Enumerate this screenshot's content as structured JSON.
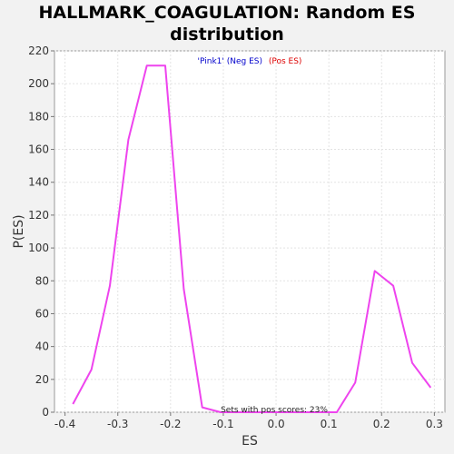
{
  "chart_data": {
    "type": "line",
    "title_line1": "HALLMARK_COAGULATION: Random ES",
    "title_line2": "distribution",
    "xlabel": "ES",
    "ylabel": "P(ES)",
    "xlim": [
      -0.42,
      0.32
    ],
    "ylim": [
      0,
      220
    ],
    "xticks": [
      -0.4,
      -0.3,
      -0.2,
      -0.1,
      0.0,
      0.1,
      0.2,
      0.3
    ],
    "xtick_labels": [
      "-0.4",
      "-0.3",
      "-0.2",
      "-0.1",
      "0.0",
      "0.1",
      "0.2",
      "0.3"
    ],
    "yticks": [
      0,
      20,
      40,
      60,
      80,
      100,
      120,
      140,
      160,
      180,
      200,
      220
    ],
    "ytick_labels": [
      "0",
      "20",
      "40",
      "60",
      "80",
      "100",
      "120",
      "140",
      "160",
      "180",
      "200",
      "220"
    ],
    "grid": true,
    "legend": {
      "neg_label": "'Pink1' (Neg ES)",
      "pos_label": "(Pos ES)",
      "neg_color": "#0000cc",
      "pos_color": "#dd0000"
    },
    "annotation": "Sets with pos scores: 23%",
    "series": [
      {
        "color": "#ee44ee",
        "x": [
          -0.385,
          -0.35,
          -0.315,
          -0.28,
          -0.245,
          -0.21,
          -0.175,
          -0.14,
          -0.105,
          -0.07,
          0.115,
          0.15,
          0.187,
          0.222,
          0.258,
          0.293
        ],
        "y": [
          5,
          26,
          77,
          166,
          211,
          211,
          75,
          3,
          0,
          0,
          0,
          18,
          86,
          77,
          30,
          15
        ]
      }
    ]
  }
}
